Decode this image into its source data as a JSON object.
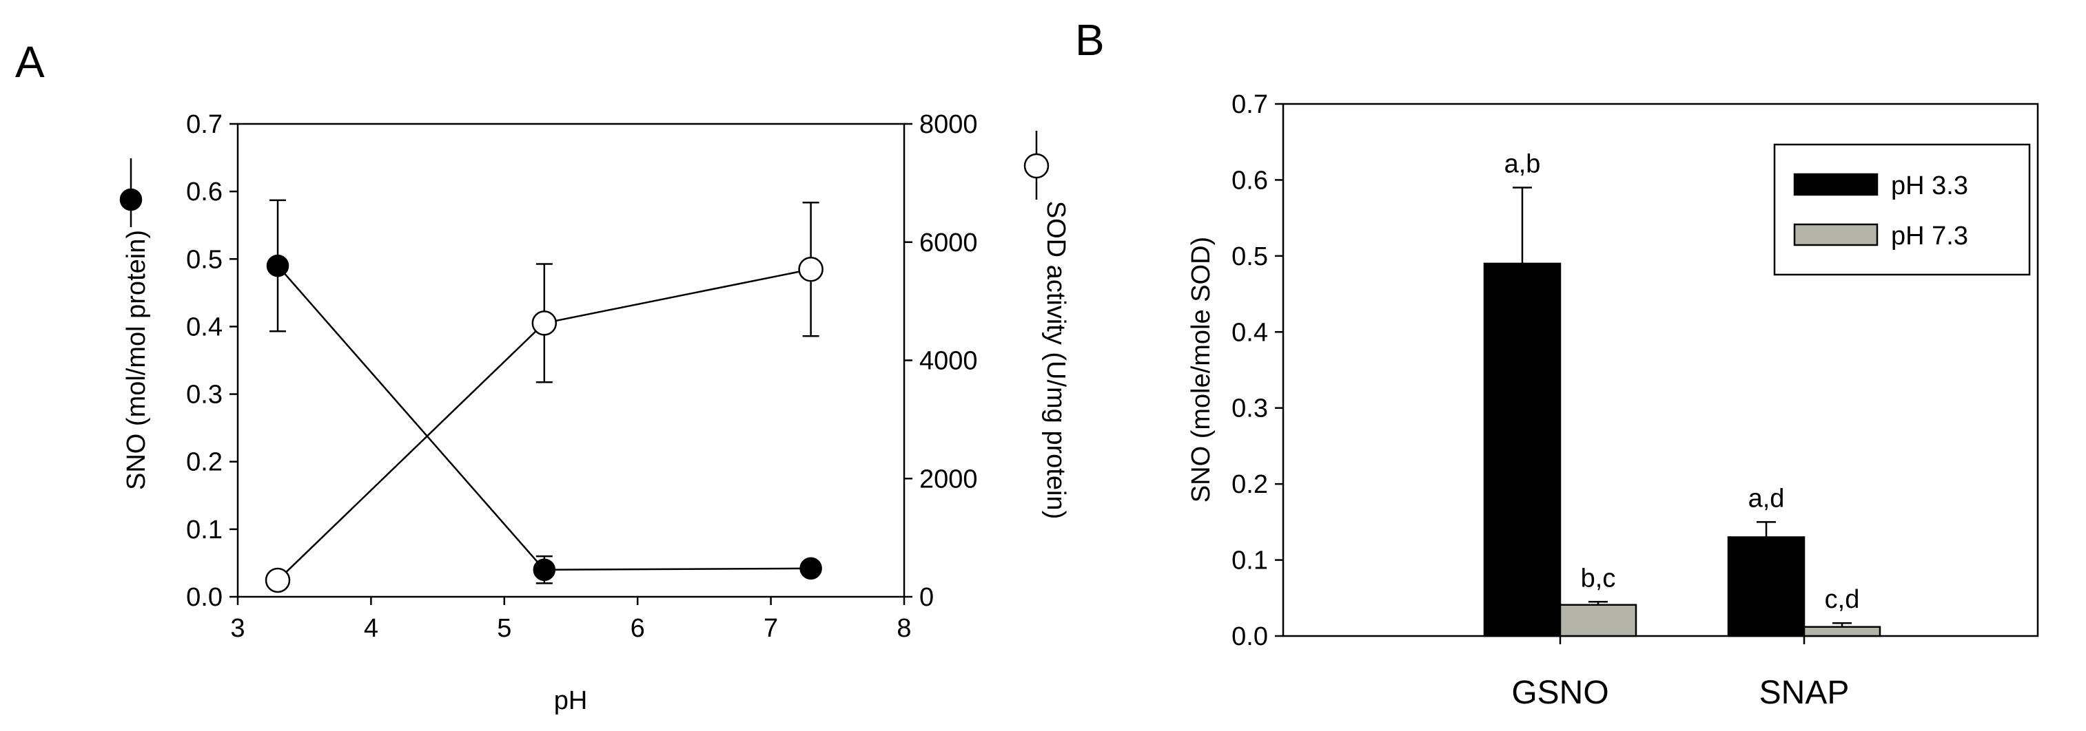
{
  "panels": {
    "a_letter": "A",
    "b_letter": "B"
  },
  "chart_data": [
    {
      "type": "line",
      "panel": "A",
      "xlabel": "pH",
      "xlim": [
        3,
        8
      ],
      "x_ticks": [
        "3",
        "4",
        "5",
        "6",
        "7",
        "8"
      ],
      "ylabel_left": "SNO (mol/mol protein)",
      "ylim_left": [
        0,
        0.7
      ],
      "y_ticks_left": [
        "0.0",
        "0.1",
        "0.2",
        "0.3",
        "0.4",
        "0.5",
        "0.6",
        "0.7"
      ],
      "ylabel_right": "SOD activity (U/mg protein)",
      "ylim_right": [
        0,
        8000
      ],
      "y_ticks_right": [
        "0",
        "2000",
        "4000",
        "6000",
        "8000"
      ],
      "series": [
        {
          "axis": "left",
          "marker": "filled-circle",
          "x": [
            3.3,
            5.3,
            7.3
          ],
          "y": [
            0.49,
            0.04,
            0.042
          ],
          "err": [
            0.097,
            0.02,
            0.005
          ]
        },
        {
          "axis": "right",
          "marker": "open-circle",
          "x": [
            3.3,
            5.3,
            7.3
          ],
          "y": [
            280,
            4630,
            5540
          ],
          "err": [
            0,
            1000,
            1130
          ]
        }
      ],
      "grid": false
    },
    {
      "type": "bar",
      "panel": "B",
      "categories": [
        "GSNO",
        "SNAP"
      ],
      "ylabel": "SNO (mole/mole SOD)",
      "ylim": [
        0,
        0.7
      ],
      "y_ticks": [
        "0.0",
        "0.1",
        "0.2",
        "0.3",
        "0.4",
        "0.5",
        "0.6",
        "0.7"
      ],
      "series": [
        {
          "name": "pH 3.3",
          "color": "#000000",
          "values": [
            0.49,
            0.13
          ],
          "err": [
            0.1,
            0.02
          ],
          "labels": [
            "a,b",
            "a,d"
          ]
        },
        {
          "name": "pH 7.3",
          "color": "#b4b4a8",
          "values": [
            0.041,
            0.012
          ],
          "err": [
            0.004,
            0.005
          ],
          "labels": [
            "b,c",
            "c,d"
          ]
        }
      ],
      "legend": "top-right",
      "grid": false
    }
  ]
}
